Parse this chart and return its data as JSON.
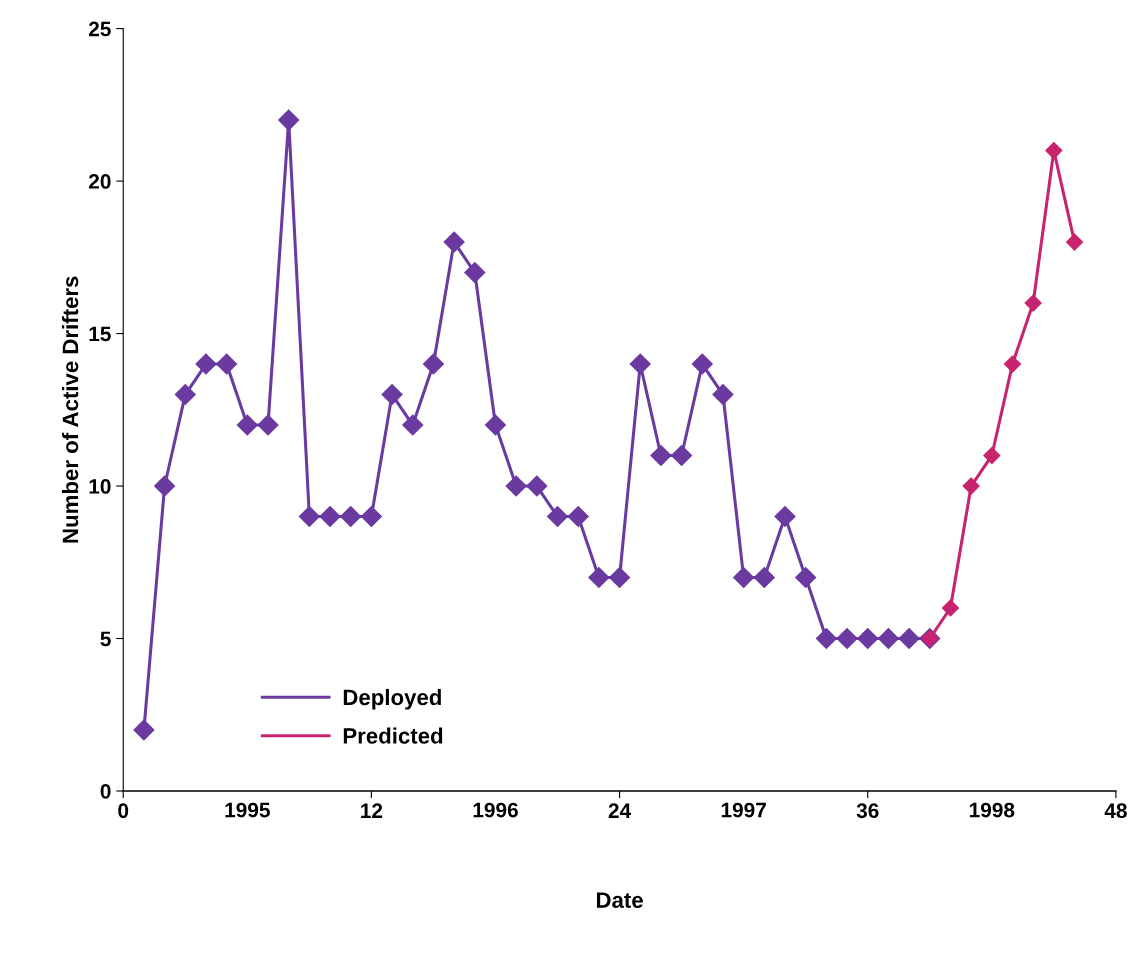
{
  "chart_data": {
    "type": "line",
    "xlabel": "Date",
    "ylabel": "Number of Active Drifters",
    "xlim": [
      0,
      48
    ],
    "xticks": [
      0,
      12,
      24,
      36,
      48
    ],
    "x2lim": [
      1994.5,
      1998.5
    ],
    "x2ticks": [
      1995,
      1996,
      1997,
      1998
    ],
    "ylim": [
      0,
      25
    ],
    "yticks": [
      0,
      5,
      10,
      15,
      20,
      25
    ],
    "grid": false,
    "legend": "bottom left",
    "marker": "diamond",
    "line_style": "solid",
    "series": [
      {
        "name": "Deployed",
        "color": "#6a3aa0",
        "x": [
          1,
          2,
          3,
          4,
          5,
          6,
          7,
          8,
          9,
          10,
          11,
          12,
          13,
          14,
          15,
          16,
          17,
          18,
          19,
          20,
          21,
          22,
          23,
          24,
          25,
          26,
          27,
          28,
          29,
          30,
          31,
          32,
          33,
          34,
          35,
          36,
          37,
          38,
          39
        ],
        "values": [
          2,
          10,
          13,
          14,
          14,
          12,
          12,
          22,
          9,
          9,
          9,
          9,
          13,
          12,
          14,
          18,
          17,
          12,
          10,
          10,
          9,
          9,
          7,
          7,
          14,
          11,
          11,
          14,
          13,
          7,
          7,
          9,
          7,
          5,
          5,
          5,
          5,
          5,
          5
        ]
      },
      {
        "name": "Predicted",
        "color": "#c8236e",
        "x": [
          39,
          40,
          41,
          42,
          43,
          44,
          45,
          46
        ],
        "values": [
          5,
          6,
          10,
          11,
          14,
          16,
          21,
          18
        ]
      }
    ]
  }
}
